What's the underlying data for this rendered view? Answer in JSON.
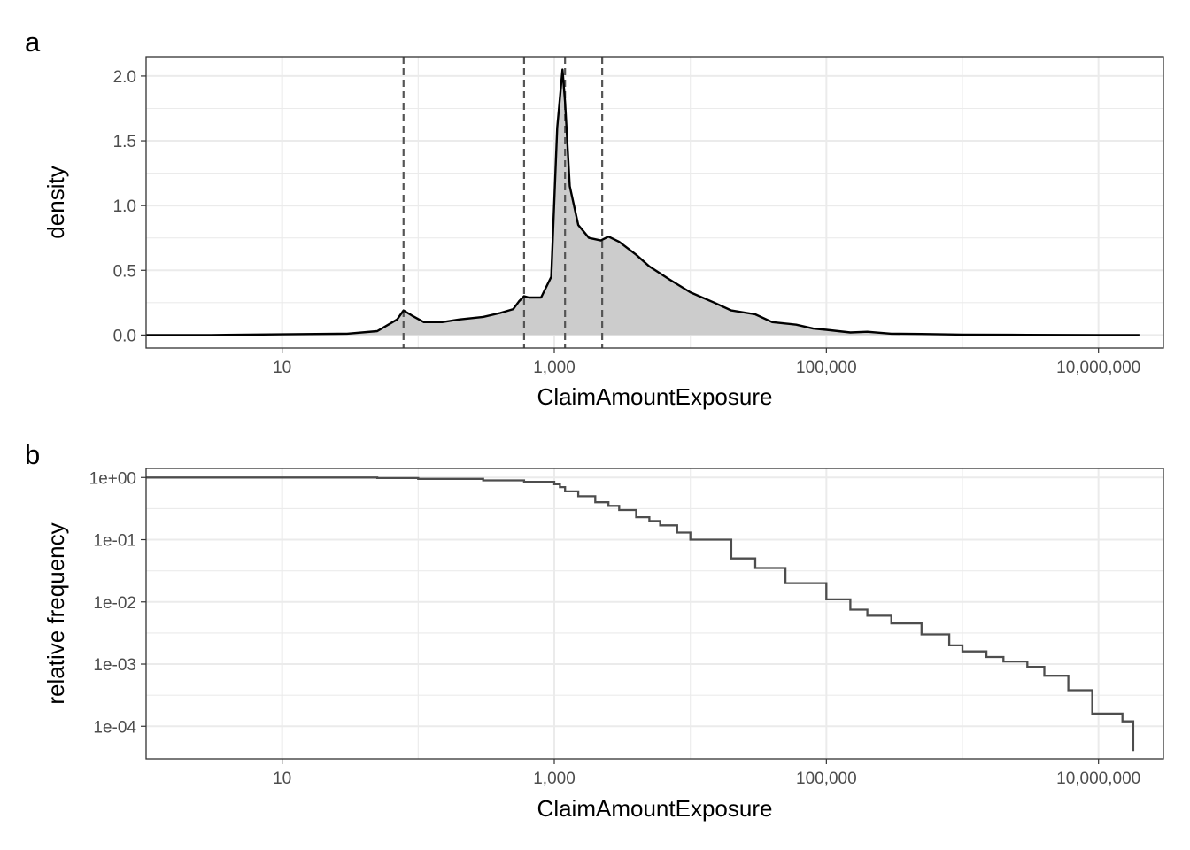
{
  "chart_data": [
    {
      "panel_label": "a",
      "type": "area",
      "xlabel": "ClaimAmountExposure",
      "ylabel": "density",
      "x_scale": "log10",
      "xlim": [
        1,
        30000000
      ],
      "ylim": [
        -0.1,
        2.15
      ],
      "x_ticks": [
        10,
        1000,
        100000,
        10000000
      ],
      "x_tick_labels": [
        "10",
        "1,000",
        "100,000",
        "10,000,000"
      ],
      "y_ticks": [
        0.0,
        0.5,
        1.0,
        1.5,
        2.0
      ],
      "y_tick_labels": [
        "0.0",
        "0.5",
        "1.0",
        "1.5",
        "2.0"
      ],
      "grid": true,
      "fill_color": "#cccccc",
      "line_color": "#000000",
      "vlines": [
        78,
        600,
        1200,
        2250
      ],
      "series": [
        {
          "x": [
            1,
            3,
            10,
            30,
            50,
            70,
            78,
            90,
            110,
            150,
            200,
            300,
            400,
            500,
            550,
            600,
            650,
            800,
            950,
            1050,
            1150,
            1200,
            1300,
            1500,
            1800,
            2200,
            2500,
            3000,
            4000,
            5000,
            7000,
            10000,
            15000,
            20000,
            30000,
            40000,
            60000,
            80000,
            100000,
            150000,
            200000,
            300000,
            500000,
            1000000,
            3000000,
            10000000,
            20000000
          ],
          "values": [
            0.0,
            0.0,
            0.005,
            0.01,
            0.03,
            0.12,
            0.19,
            0.15,
            0.1,
            0.1,
            0.12,
            0.14,
            0.17,
            0.2,
            0.26,
            0.3,
            0.29,
            0.29,
            0.45,
            1.6,
            2.05,
            1.8,
            1.15,
            0.85,
            0.75,
            0.73,
            0.76,
            0.72,
            0.62,
            0.53,
            0.43,
            0.33,
            0.25,
            0.19,
            0.16,
            0.1,
            0.08,
            0.05,
            0.04,
            0.02,
            0.025,
            0.01,
            0.008,
            0.003,
            0.001,
            0.0,
            0.0
          ]
        }
      ]
    },
    {
      "panel_label": "b",
      "type": "line",
      "xlabel": "ClaimAmountExposure",
      "ylabel": "relative frequency",
      "x_scale": "log10",
      "y_scale": "log10",
      "xlim": [
        1,
        30000000
      ],
      "ylim": [
        3e-05,
        1.4
      ],
      "x_ticks": [
        10,
        1000,
        100000,
        10000000
      ],
      "x_tick_labels": [
        "10",
        "1,000",
        "100,000",
        "10,000,000"
      ],
      "y_ticks": [
        1,
        0.1,
        0.01,
        0.001,
        0.0001
      ],
      "y_tick_labels": [
        "1e+00",
        "1e-01",
        "1e-02",
        "1e-03",
        "1e-04"
      ],
      "grid": true,
      "line_color": "#4d4d4d",
      "series": [
        {
          "x": [
            1,
            10,
            50,
            100,
            300,
            600,
            1000,
            1100,
            1200,
            1500,
            2000,
            2500,
            3000,
            4000,
            5000,
            6000,
            8000,
            10000,
            20000,
            30000,
            50000,
            100000,
            150000,
            200000,
            300000,
            500000,
            800000,
            1000000,
            1500000,
            2000000,
            3000000,
            4000000,
            6000000,
            9000000,
            10000000,
            15000000,
            18000000,
            18000000
          ],
          "values": [
            1.0,
            1.0,
            0.98,
            0.95,
            0.9,
            0.85,
            0.78,
            0.7,
            0.6,
            0.5,
            0.4,
            0.35,
            0.3,
            0.23,
            0.2,
            0.17,
            0.13,
            0.1,
            0.05,
            0.035,
            0.02,
            0.011,
            0.0075,
            0.006,
            0.0045,
            0.003,
            0.002,
            0.0016,
            0.0013,
            0.0011,
            0.0009,
            0.00065,
            0.00038,
            0.00016,
            0.00016,
            0.00012,
            0.00012,
            4e-05
          ]
        }
      ]
    }
  ]
}
